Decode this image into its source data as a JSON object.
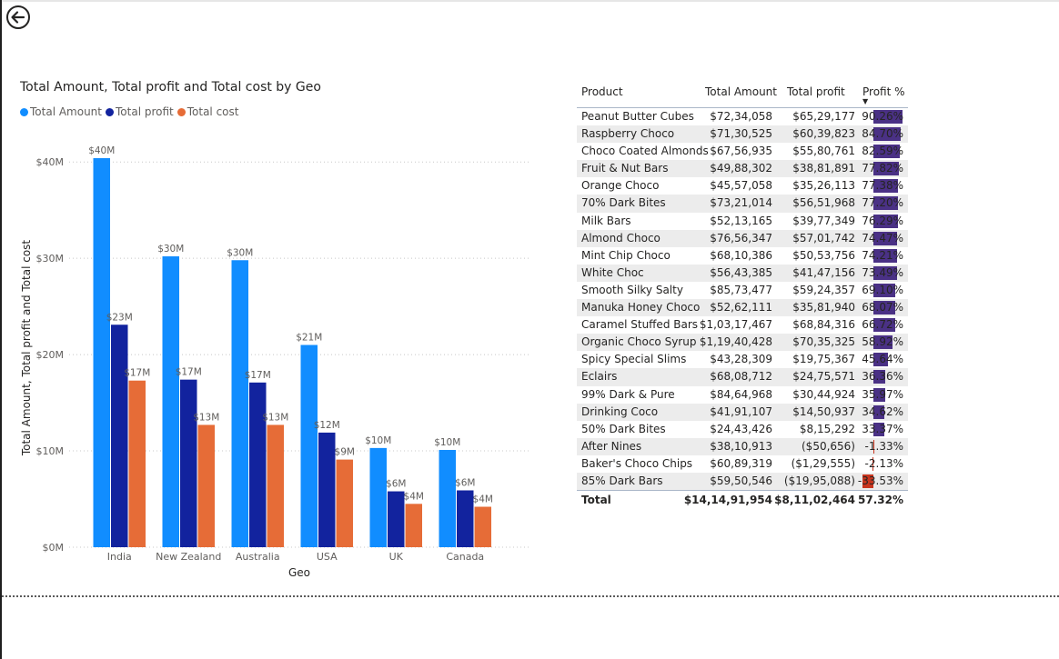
{
  "chart_data": [
    {
      "type": "bar",
      "title": "Total Amount, Total profit and Total cost by Geo",
      "xlabel": "Geo",
      "ylabel": "Total Amount, Total profit and Total cost",
      "ylim": [
        0,
        42000000
      ],
      "yticks": [
        0,
        10000000,
        20000000,
        30000000,
        40000000
      ],
      "ytick_labels": [
        "$0M",
        "$10M",
        "$20M",
        "$30M",
        "$40M"
      ],
      "grid": true,
      "legend": "top-left",
      "categories": [
        "India",
        "New Zealand",
        "Australia",
        "USA",
        "UK",
        "Canada"
      ],
      "series": [
        {
          "name": "Total Amount",
          "color": "#118dff",
          "values": [
            40.4,
            30.2,
            29.8,
            21.0,
            10.3,
            10.1
          ],
          "labels": [
            "$40M",
            "$30M",
            "$30M",
            "$21M",
            "$10M",
            "$10M"
          ]
        },
        {
          "name": "Total profit",
          "color": "#12239e",
          "values": [
            23.1,
            17.4,
            17.1,
            11.9,
            5.8,
            5.9
          ],
          "labels": [
            "$23M",
            "$17M",
            "$17M",
            "$12M",
            "$6M",
            "$6M"
          ]
        },
        {
          "name": "Total cost",
          "color": "#e66c37",
          "values": [
            17.3,
            12.7,
            12.7,
            9.1,
            4.5,
            4.2
          ],
          "labels": [
            "$17M",
            "$13M",
            "$13M",
            "$9M",
            "$4M",
            "$4M"
          ]
        }
      ],
      "value_unit": "M"
    },
    {
      "type": "table",
      "columns": [
        "Product",
        "Total Amount",
        "Total profit",
        "Profit %"
      ],
      "sort_column": "Profit %",
      "rows": [
        {
          "product": "Peanut Butter Cubes",
          "amount": "$72,34,058",
          "profit": "$65,29,177",
          "pct": "90.26%",
          "pct_value": 90.26
        },
        {
          "product": "Raspberry Choco",
          "amount": "$71,30,525",
          "profit": "$60,39,823",
          "pct": "84.70%",
          "pct_value": 84.7
        },
        {
          "product": "Choco Coated Almonds",
          "amount": "$67,56,935",
          "profit": "$55,80,761",
          "pct": "82.59%",
          "pct_value": 82.59
        },
        {
          "product": "Fruit & Nut Bars",
          "amount": "$49,88,302",
          "profit": "$38,81,891",
          "pct": "77.82%",
          "pct_value": 77.82
        },
        {
          "product": "Orange Choco",
          "amount": "$45,57,058",
          "profit": "$35,26,113",
          "pct": "77.38%",
          "pct_value": 77.38
        },
        {
          "product": "70% Dark Bites",
          "amount": "$73,21,014",
          "profit": "$56,51,968",
          "pct": "77.20%",
          "pct_value": 77.2
        },
        {
          "product": "Milk Bars",
          "amount": "$52,13,165",
          "profit": "$39,77,349",
          "pct": "76.29%",
          "pct_value": 76.29
        },
        {
          "product": "Almond Choco",
          "amount": "$76,56,347",
          "profit": "$57,01,742",
          "pct": "74.47%",
          "pct_value": 74.47
        },
        {
          "product": "Mint Chip Choco",
          "amount": "$68,10,386",
          "profit": "$50,53,756",
          "pct": "74.21%",
          "pct_value": 74.21
        },
        {
          "product": "White Choc",
          "amount": "$56,43,385",
          "profit": "$41,47,156",
          "pct": "73.49%",
          "pct_value": 73.49
        },
        {
          "product": "Smooth Silky Salty",
          "amount": "$85,73,477",
          "profit": "$59,24,357",
          "pct": "69.10%",
          "pct_value": 69.1
        },
        {
          "product": "Manuka Honey Choco",
          "amount": "$52,62,111",
          "profit": "$35,81,940",
          "pct": "68.07%",
          "pct_value": 68.07
        },
        {
          "product": "Caramel Stuffed Bars",
          "amount": "$1,03,17,467",
          "profit": "$68,84,316",
          "pct": "66.72%",
          "pct_value": 66.72
        },
        {
          "product": "Organic Choco Syrup",
          "amount": "$1,19,40,428",
          "profit": "$70,35,325",
          "pct": "58.92%",
          "pct_value": 58.92
        },
        {
          "product": "Spicy Special Slims",
          "amount": "$43,28,309",
          "profit": "$19,75,367",
          "pct": "45.64%",
          "pct_value": 45.64
        },
        {
          "product": "Eclairs",
          "amount": "$68,08,712",
          "profit": "$24,75,571",
          "pct": "36.36%",
          "pct_value": 36.36
        },
        {
          "product": "99% Dark & Pure",
          "amount": "$84,64,968",
          "profit": "$30,44,924",
          "pct": "35.97%",
          "pct_value": 35.97
        },
        {
          "product": "Drinking Coco",
          "amount": "$41,91,107",
          "profit": "$14,50,937",
          "pct": "34.62%",
          "pct_value": 34.62
        },
        {
          "product": "50% Dark Bites",
          "amount": "$24,43,426",
          "profit": "$8,15,292",
          "pct": "33.37%",
          "pct_value": 33.37
        },
        {
          "product": "After Nines",
          "amount": "$38,10,913",
          "profit": "($50,656)",
          "pct": "-1.33%",
          "pct_value": -1.33
        },
        {
          "product": "Baker's Choco Chips",
          "amount": "$60,89,319",
          "profit": "($1,29,555)",
          "pct": "-2.13%",
          "pct_value": -2.13
        },
        {
          "product": "85% Dark Bars",
          "amount": "$59,50,546",
          "profit": "($19,95,088)",
          "pct": "-33.53%",
          "pct_value": -33.53
        }
      ],
      "total": {
        "label": "Total",
        "amount": "$14,14,91,954",
        "profit": "$8,11,02,464",
        "pct": "57.32%"
      },
      "bar_colors": {
        "positive": "#4a3185",
        "negative": "#c8351e"
      }
    }
  ]
}
